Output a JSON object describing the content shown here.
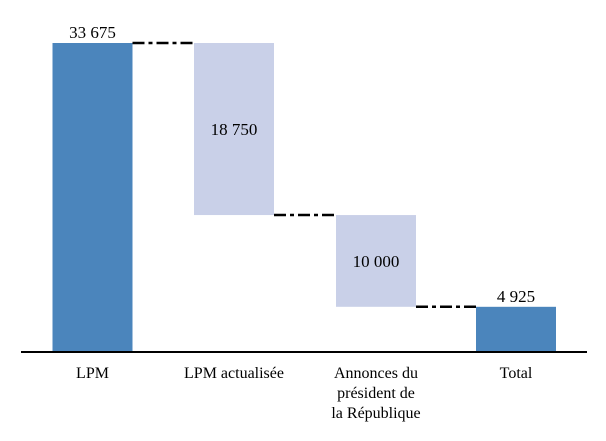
{
  "chart_data": {
    "type": "waterfall",
    "title": "",
    "xlabel": "",
    "ylabel": "",
    "categories": [
      "LPM",
      "LPM actualisée",
      "Annonces du président de la République",
      "Total"
    ],
    "bars": [
      {
        "id": "lpm",
        "category": "LPM",
        "category_lines": [
          "LPM"
        ],
        "value": 33675,
        "value_label": "33 675",
        "kind": "total",
        "level_start": 0,
        "level_end": 33675,
        "value_label_position": "above"
      },
      {
        "id": "lpm-actualisee",
        "category": "LPM actualisée",
        "category_lines": [
          "LPM actualisée"
        ],
        "value": 18750,
        "value_label": "18 750",
        "kind": "decrease",
        "level_start": 33675,
        "level_end": 14925,
        "value_label_position": "inside"
      },
      {
        "id": "annonces-president",
        "category": "Annonces du président de la République",
        "category_lines": [
          "Annonces du",
          "président de",
          "la République"
        ],
        "value": 10000,
        "value_label": "10 000",
        "kind": "decrease",
        "level_start": 14925,
        "level_end": 4925,
        "value_label_position": "inside"
      },
      {
        "id": "total",
        "category": "Total",
        "category_lines": [
          "Total"
        ],
        "value": 4925,
        "value_label": "4 925",
        "kind": "total",
        "level_start": 0,
        "level_end": 4925,
        "value_label_position": "above"
      }
    ],
    "ylim": [
      0,
      33675
    ],
    "grid": false,
    "legend": "none",
    "connector_style": "dash-dot",
    "colors": {
      "total_bar": "#4b85bc",
      "floating_bar": "#c9d0e8",
      "connector": "#000000",
      "axis": "#000000",
      "text": "#000000",
      "background": "#ffffff"
    }
  }
}
